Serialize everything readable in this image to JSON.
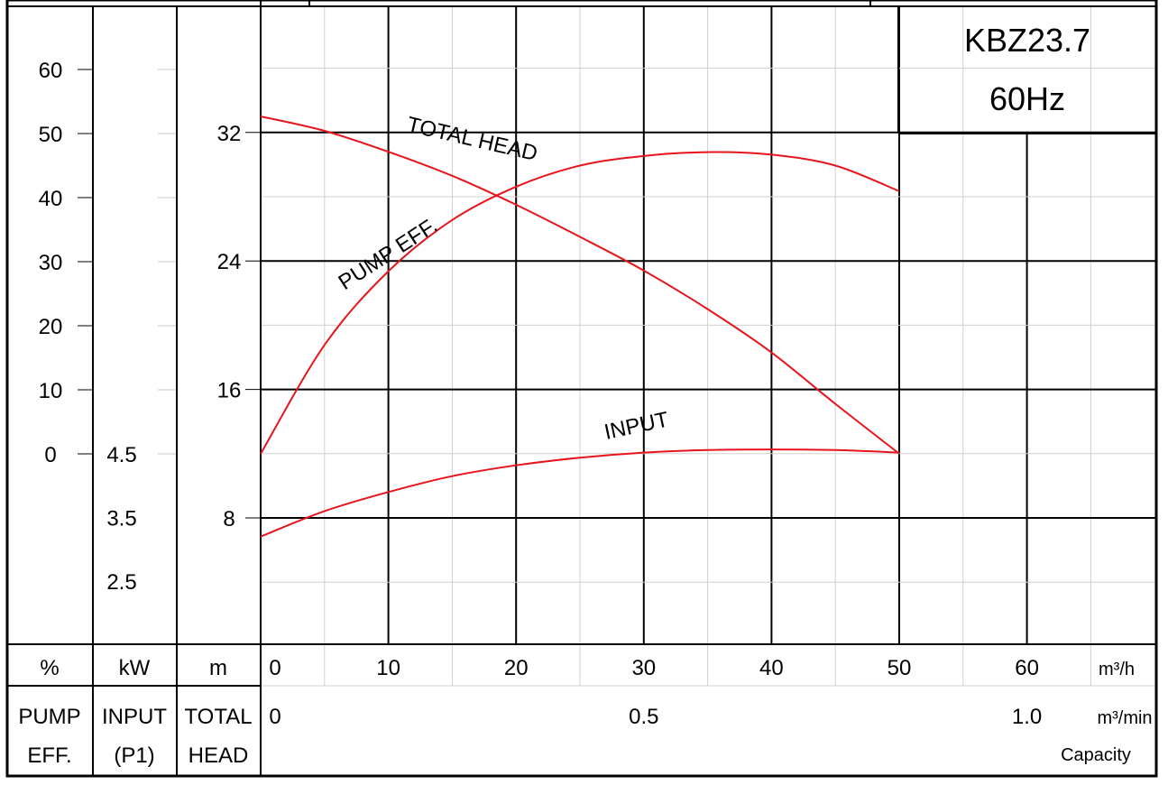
{
  "model": {
    "name": "KBZ23.7",
    "freq": "60Hz"
  },
  "columns": {
    "eff": {
      "unit": "%",
      "title1": "PUMP",
      "title2": "EFF."
    },
    "input": {
      "unit": "kW",
      "title1": "INPUT",
      "title2": "(P1)"
    },
    "head": {
      "unit": "m",
      "title1": "TOTAL",
      "title2": "HEAD"
    }
  },
  "capacity": {
    "unit_h": "m³/h",
    "unit_min": "m³/min",
    "label": "Capacity"
  },
  "chart_data": {
    "type": "line",
    "x_label_m3h": "m³/h",
    "x_label_m3min": "m³/min",
    "xlim_m3h": [
      0,
      70
    ],
    "x_ticks_m3h": [
      0,
      10,
      20,
      30,
      40,
      50,
      60
    ],
    "x_ticks_m3min": [
      {
        "value": 0,
        "label": "0"
      },
      {
        "value": 0.5,
        "label": "0.5"
      },
      {
        "value": 1.0,
        "label": "1.0"
      }
    ],
    "axes": {
      "eff": {
        "unit": "%",
        "range": [
          0,
          60
        ],
        "ticks": [
          0,
          10,
          20,
          30,
          40,
          50,
          60
        ]
      },
      "input": {
        "unit": "kW",
        "range": [
          2.5,
          4.5
        ],
        "ticks": [
          2.5,
          3.5,
          4.5
        ]
      },
      "head": {
        "unit": "m",
        "range": [
          8,
          32
        ],
        "ticks": [
          8,
          16,
          24,
          32
        ]
      }
    },
    "grid": true,
    "series": [
      {
        "name": "TOTAL HEAD",
        "axis": "head",
        "color": "#e8141c",
        "x": [
          0,
          5,
          10,
          15,
          20,
          25,
          30,
          35,
          40,
          45,
          50
        ],
        "y": [
          33.0,
          32.1,
          30.8,
          29.3,
          27.5,
          25.5,
          23.4,
          21.0,
          18.3,
          15.1,
          12.0
        ]
      },
      {
        "name": "PUMP EFF.",
        "axis": "eff",
        "color": "#e8141c",
        "x": [
          0,
          5,
          10,
          15,
          20,
          25,
          30,
          35,
          40,
          45,
          50
        ],
        "y": [
          0,
          17,
          28.5,
          36.5,
          41.7,
          45.0,
          46.5,
          47.1,
          46.7,
          45.0,
          41.0
        ]
      },
      {
        "name": "INPUT",
        "axis": "input",
        "color": "#e8141c",
        "x": [
          0,
          5,
          10,
          15,
          20,
          25,
          30,
          35,
          40,
          45,
          50
        ],
        "y": [
          3.2,
          3.6,
          3.9,
          4.15,
          4.32,
          4.44,
          4.52,
          4.56,
          4.57,
          4.56,
          4.52
        ]
      }
    ]
  }
}
